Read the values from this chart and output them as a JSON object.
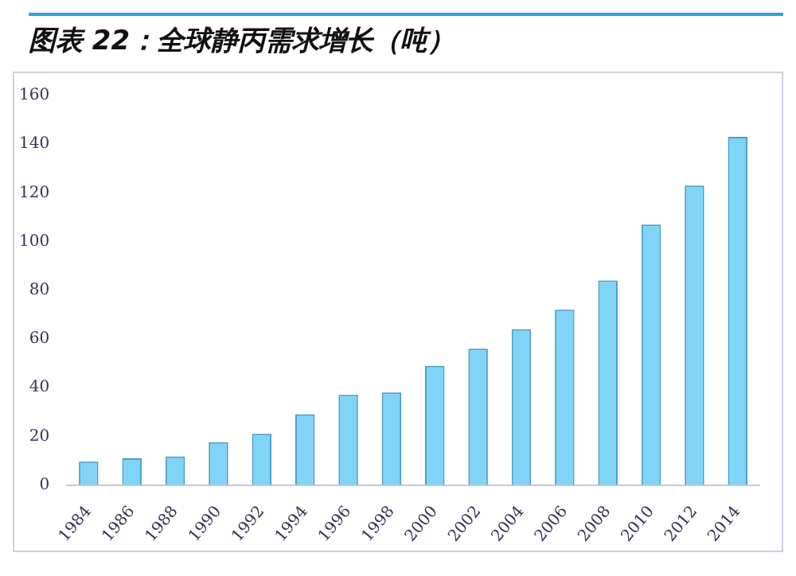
{
  "chart_data": {
    "type": "bar",
    "title": "图表 22：全球静丙需求增长（吨）",
    "categories": [
      "1984",
      "1986",
      "1988",
      "1990",
      "1992",
      "1994",
      "1996",
      "1998",
      "2000",
      "2002",
      "2004",
      "2006",
      "2008",
      "2010",
      "2012",
      "2014"
    ],
    "values": [
      9.6,
      11,
      11.7,
      17.6,
      21,
      29,
      37,
      38,
      49,
      56,
      64,
      72,
      84,
      107,
      123,
      143
    ],
    "color": "#7fd4f8",
    "ylim": [
      0,
      160
    ],
    "yticks": [
      0,
      20,
      40,
      60,
      80,
      100,
      120,
      140,
      160
    ],
    "grid": false,
    "legend": false
  }
}
